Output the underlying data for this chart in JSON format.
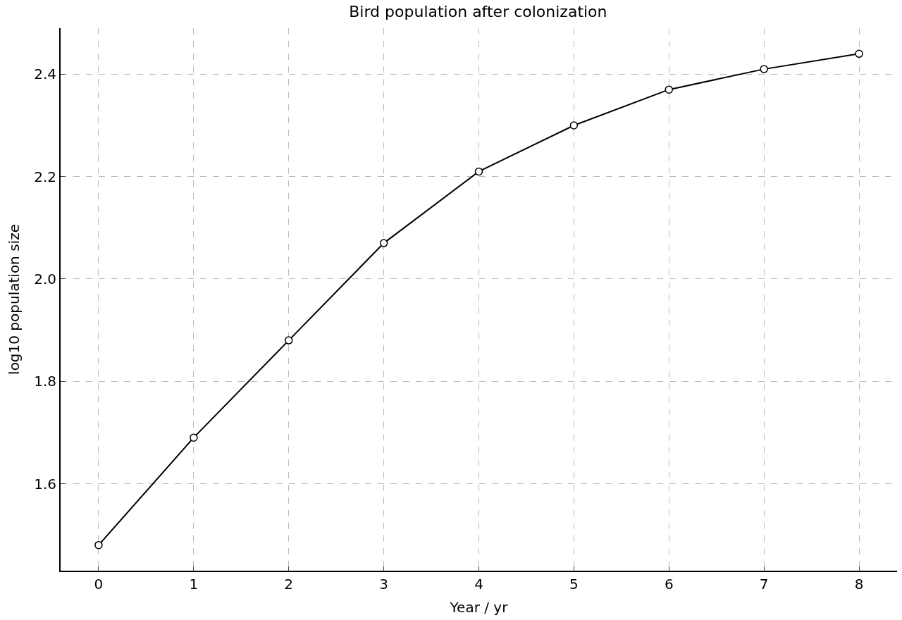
{
  "chart_data": {
    "type": "line",
    "title": "Bird population after colonization",
    "xlabel": "Year / yr",
    "ylabel": "log10 population size",
    "x": [
      0,
      1,
      2,
      3,
      4,
      5,
      6,
      7,
      8
    ],
    "series": [
      {
        "color": "#000000",
        "values": [
          1.48,
          1.69,
          1.88,
          2.07,
          2.21,
          2.3,
          2.37,
          2.41,
          2.44
        ]
      }
    ],
    "xlim": [
      -0.4,
      8.4
    ],
    "ylim": [
      1.43,
      2.49
    ],
    "xticks": [
      0,
      1,
      2,
      3,
      4,
      5,
      6,
      7,
      8
    ],
    "yticks": [
      {
        "value": 1.6,
        "label": "1.6"
      },
      {
        "value": 1.8,
        "label": "1.8"
      },
      {
        "value": 2.0,
        "label": "2.0"
      },
      {
        "value": 2.2,
        "label": "2.2"
      },
      {
        "value": 2.4,
        "label": "2.4"
      }
    ],
    "grid": true,
    "marker": "circle",
    "line_style": "solid"
  }
}
